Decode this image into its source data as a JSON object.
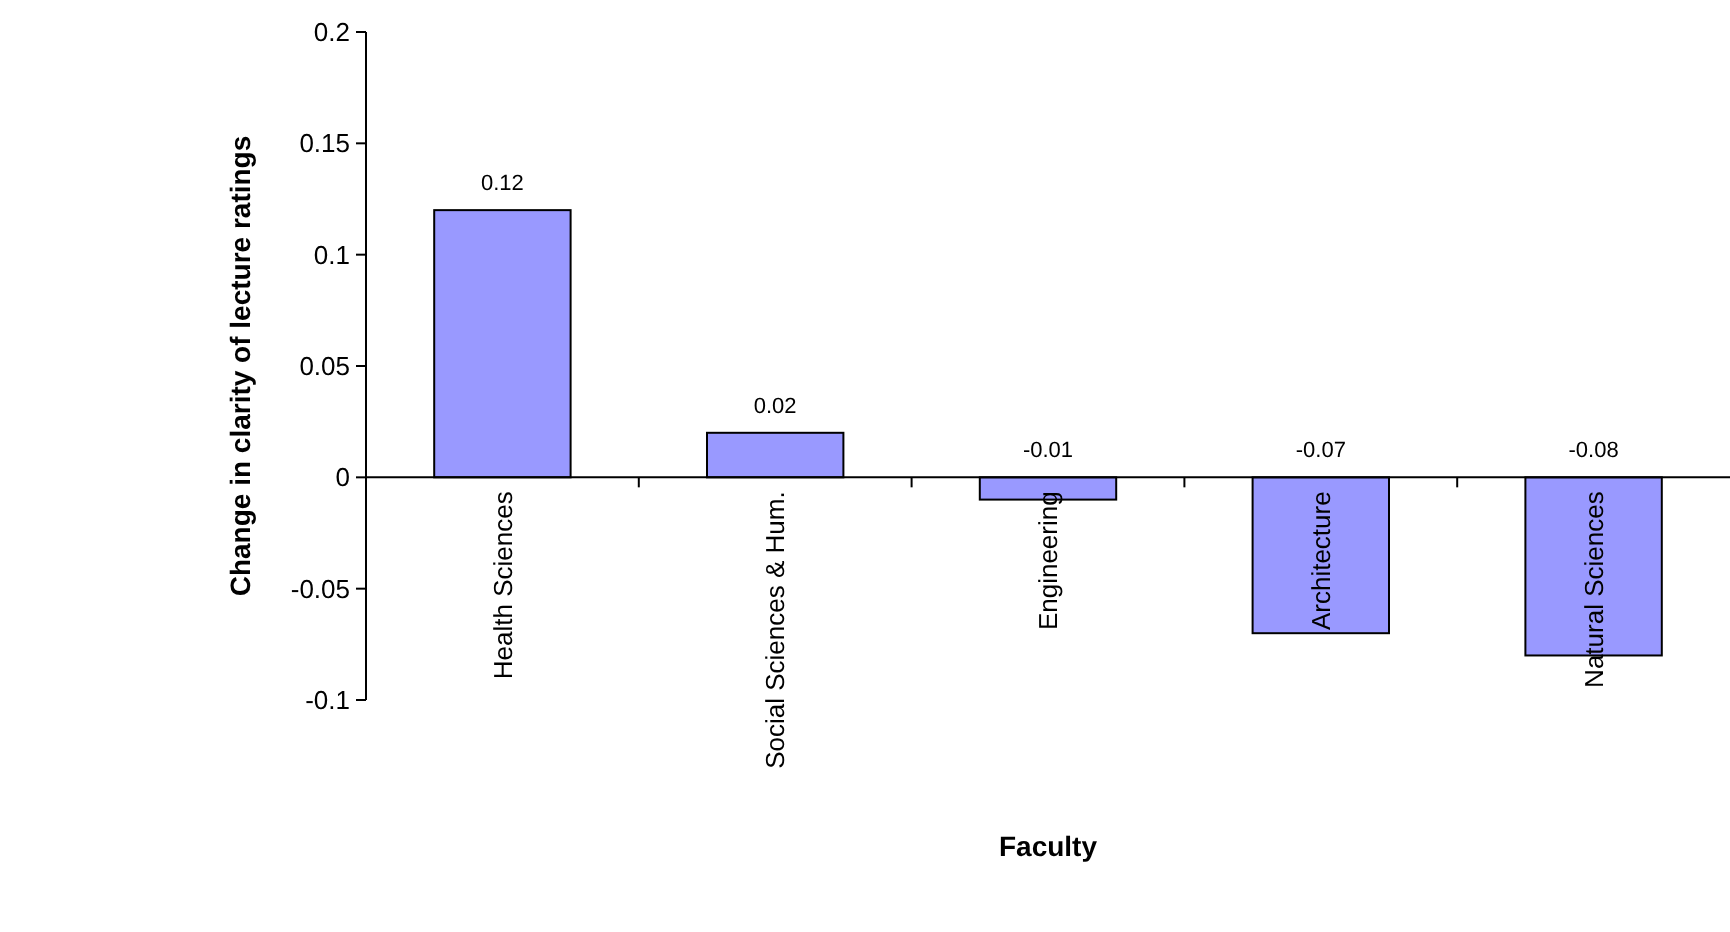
{
  "chart_data": {
    "type": "bar",
    "xlabel": "Faculty",
    "ylabel": "Change in clarity of lecture ratings",
    "categories": [
      "Health Sciences",
      "Social Sciences & Hum.",
      "Engineering",
      "Architecture",
      "Natural Sciences"
    ],
    "values": [
      0.12,
      0.02,
      -0.01,
      -0.07,
      -0.08
    ],
    "color": "#9999ff",
    "ylim": [
      -0.1,
      0.2
    ],
    "yticks": [
      -0.1,
      -0.05,
      0,
      0.05,
      0.1,
      0.15,
      0.2
    ],
    "data_labels": true
  }
}
